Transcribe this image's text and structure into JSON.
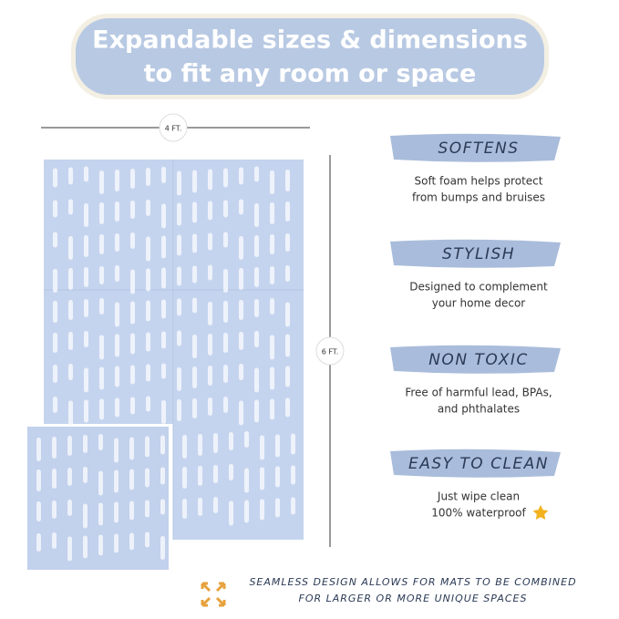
{
  "header": {
    "title_lines": [
      "Expandable sizes & dimensions",
      "to fit any room or space"
    ]
  },
  "dimensions": {
    "width": "4 FT.",
    "height": "6 FT."
  },
  "features": [
    {
      "title": "SOFTENS",
      "description_lines": [
        "Soft foam helps protect",
        "from bumps and bruises"
      ]
    },
    {
      "title": "STYLISH",
      "description_lines": [
        "Designed to complement",
        "your home decor"
      ]
    },
    {
      "title": "NON TOXIC",
      "description_lines": [
        "Free of harmful lead, BPAs,",
        "and phthalates"
      ]
    },
    {
      "title": "EASY TO CLEAN",
      "description_lines": [
        "Just wipe clean",
        "100% waterproof"
      ]
    }
  ],
  "footer": {
    "lines": [
      "SEAMLESS DESIGN ALLOWS FOR MATS TO BE COMBINED",
      "FOR LARGER OR MORE UNIQUE SPACES"
    ]
  }
}
